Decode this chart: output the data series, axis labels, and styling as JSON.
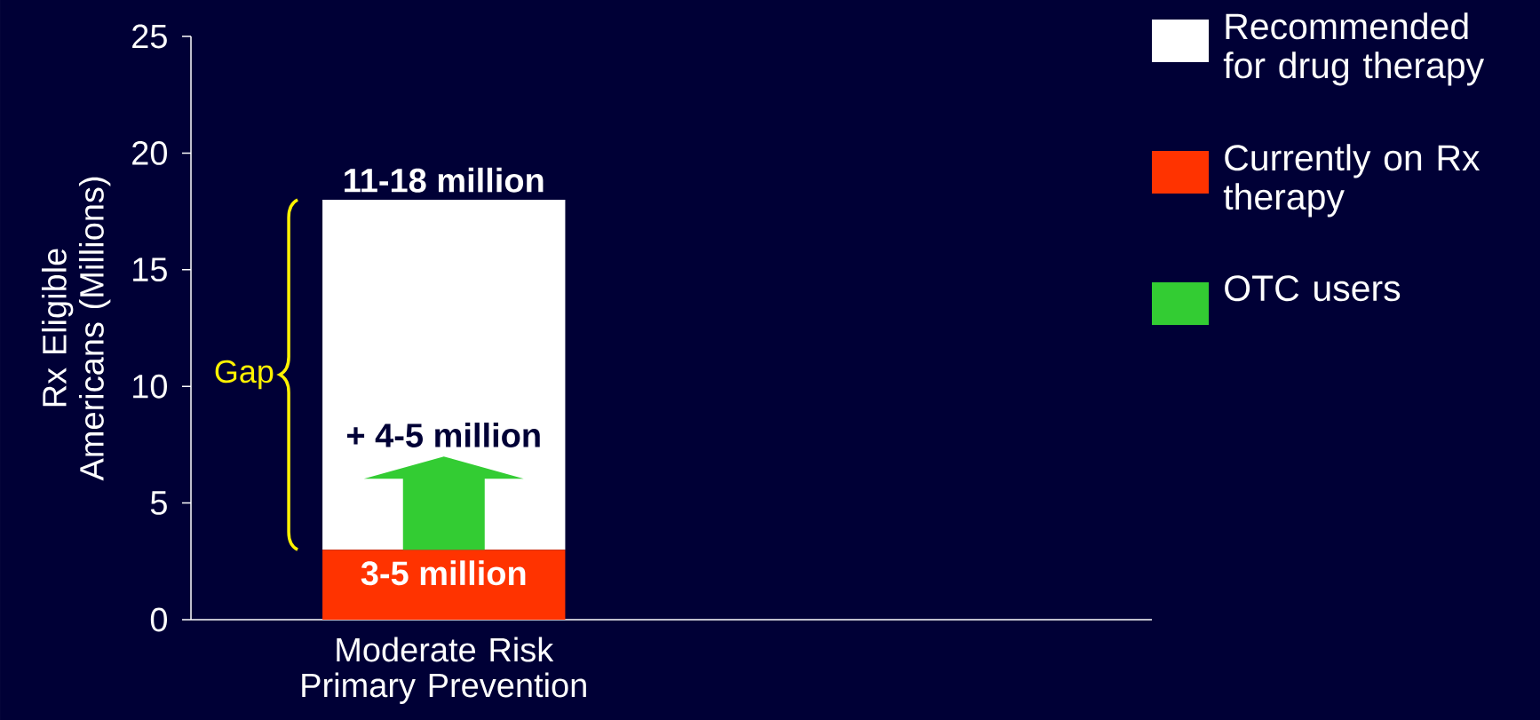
{
  "chart_data": {
    "type": "bar",
    "stacked": true,
    "ylabel": "Rx Eligible Americans (Millions)",
    "categories": [
      "Moderate Risk Primary Prevention"
    ],
    "series": [
      {
        "name": "Currently on Rx therapy",
        "color": "#ff3300",
        "values": [
          3
        ]
      },
      {
        "name": "Recommended for drug therapy",
        "color": "#ffffff",
        "values": [
          15
        ]
      },
      {
        "name": "OTC users",
        "color": "#33cc33",
        "values": [
          null
        ]
      }
    ],
    "ylim": [
      0,
      25
    ],
    "yticks": [
      0,
      5,
      10,
      15,
      20,
      25
    ],
    "legend": "top right",
    "annotations": [
      {
        "text": "11-18 million",
        "x": "Moderate Risk Primary Prevention",
        "y": 18
      },
      {
        "text": "3-5 million",
        "x": "Moderate Risk Primary Prevention",
        "y": 3
      },
      "+ 4-5 million",
      "Gap"
    ]
  }
}
